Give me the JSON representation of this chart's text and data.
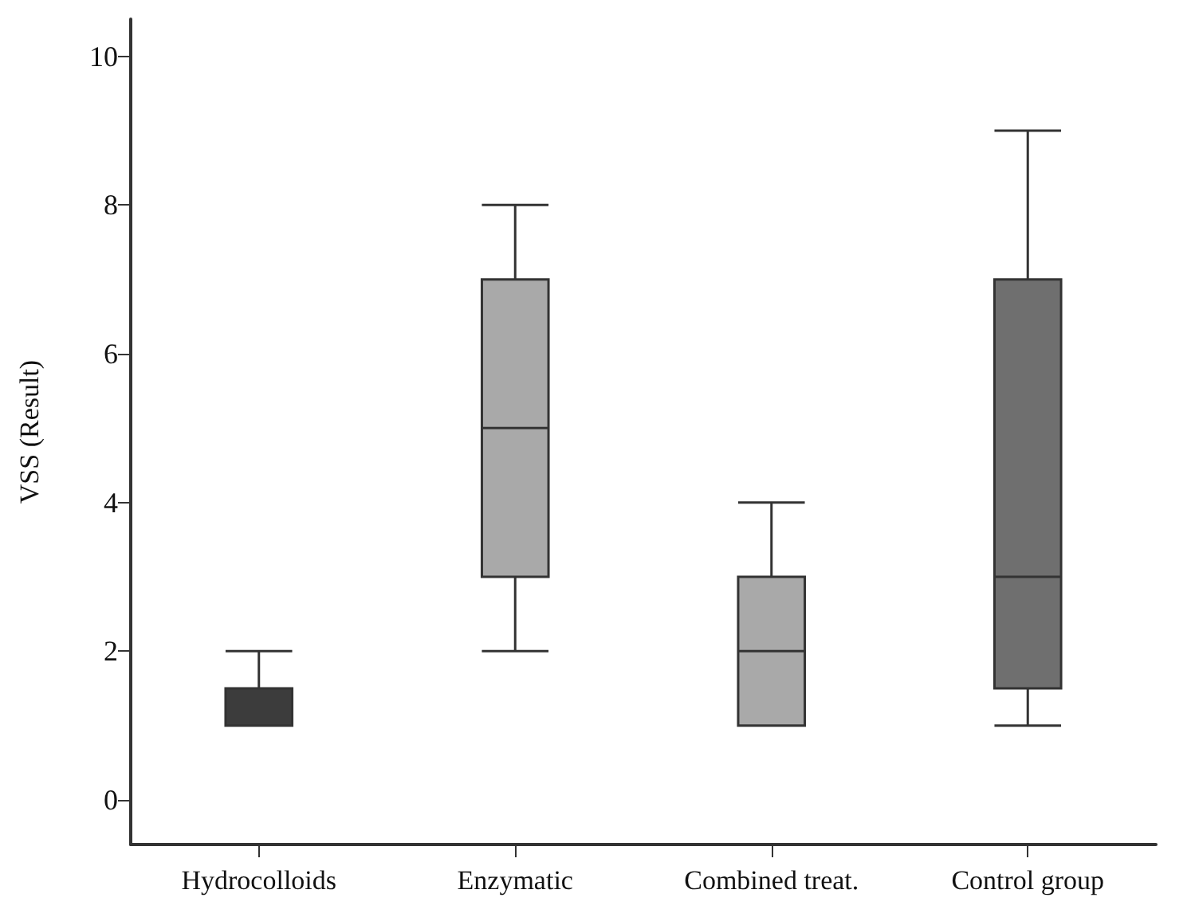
{
  "chart_data": {
    "type": "box",
    "ylabel": "VSS (Result)",
    "categories": [
      "Hydrocolloids",
      "Enzymatic",
      "Combined treat.",
      "Control group"
    ],
    "boxes": [
      {
        "low": 1,
        "q1": 1,
        "median": 1,
        "q3": 1.5,
        "high": 2
      },
      {
        "low": 2,
        "q1": 3,
        "median": 5,
        "q3": 7,
        "high": 8
      },
      {
        "low": 1,
        "q1": 1,
        "median": 2,
        "q3": 3,
        "high": 4
      },
      {
        "low": 1,
        "q1": 1.5,
        "median": 3,
        "q3": 7,
        "high": 9
      }
    ],
    "colors": [
      "#3c3c3c",
      "#a9a9a9",
      "#a9a9a9",
      "#6f6f6f"
    ],
    "ylim": [
      -0.6,
      10.5
    ],
    "yticks": [
      0,
      2,
      4,
      6,
      8,
      10
    ],
    "grid": false
  }
}
